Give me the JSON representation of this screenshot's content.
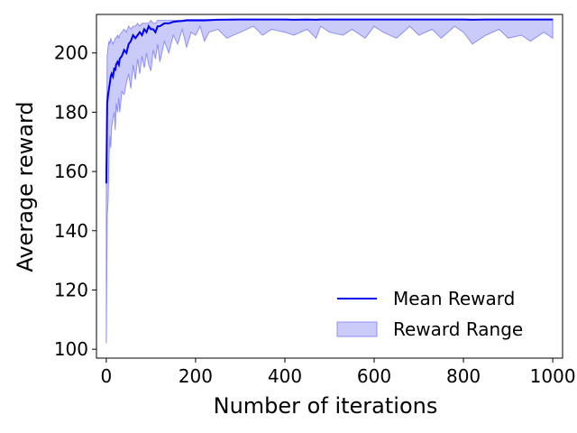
{
  "chart_data": {
    "type": "line",
    "title": "",
    "xlabel": "Number of iterations",
    "ylabel": "Average reward",
    "xlim": [
      -22,
      1022
    ],
    "ylim": [
      97,
      213
    ],
    "xticks": [
      0,
      200,
      400,
      600,
      800,
      1000
    ],
    "yticks": [
      100,
      120,
      140,
      160,
      180,
      200
    ],
    "grid": false,
    "legend_position": "lower-right",
    "colors": {
      "mean_line": "#0000ee",
      "range_fill": "#cbcbf9",
      "range_edge": "#8f8ff5"
    },
    "series": [
      {
        "name": "Mean Reward",
        "kind": "line",
        "x": [
          0,
          2,
          4,
          6,
          8,
          10,
          12,
          15,
          18,
          20,
          22,
          25,
          28,
          30,
          35,
          40,
          45,
          50,
          55,
          60,
          65,
          70,
          75,
          80,
          85,
          90,
          95,
          100,
          105,
          110,
          115,
          120,
          130,
          140,
          150,
          160,
          170,
          180,
          200,
          220,
          250,
          300,
          350,
          400,
          420,
          450,
          470,
          480,
          500,
          550,
          600,
          650,
          700,
          750,
          800,
          820,
          850,
          900,
          950,
          1000
        ],
        "y": [
          156,
          183,
          186,
          188,
          190,
          192,
          193,
          192,
          195,
          194,
          196,
          197,
          196,
          198,
          199,
          201,
          200,
          203,
          204,
          206,
          205,
          206,
          207,
          206,
          208,
          207,
          209,
          208,
          208,
          207,
          209,
          209,
          210,
          210,
          210.5,
          210.7,
          210.8,
          211,
          211,
          211,
          211.2,
          211.3,
          211.3,
          211.3,
          211.2,
          211.3,
          211.2,
          211.3,
          211.3,
          211.3,
          211.3,
          211.3,
          211.3,
          211.3,
          211.3,
          211.2,
          211.3,
          211.3,
          211.3,
          211.3
        ]
      },
      {
        "name": "Reward Range",
        "kind": "band",
        "x": [
          0,
          2,
          4,
          6,
          8,
          10,
          12,
          15,
          18,
          20,
          22,
          25,
          28,
          30,
          35,
          40,
          45,
          50,
          55,
          60,
          65,
          70,
          75,
          80,
          85,
          90,
          95,
          100,
          105,
          110,
          115,
          120,
          130,
          140,
          150,
          160,
          170,
          180,
          190,
          200,
          210,
          220,
          230,
          250,
          270,
          300,
          330,
          350,
          370,
          400,
          420,
          450,
          470,
          480,
          500,
          530,
          550,
          580,
          600,
          620,
          650,
          680,
          700,
          730,
          750,
          780,
          800,
          820,
          850,
          880,
          900,
          930,
          950,
          980,
          1000
        ],
        "upper": [
          160,
          199,
          202,
          204,
          203,
          205,
          204,
          203,
          204,
          205,
          205,
          206,
          205,
          206,
          207,
          208,
          207,
          209,
          208,
          209,
          209,
          210,
          209,
          210,
          210,
          210,
          210,
          211,
          210,
          210,
          211,
          211,
          211,
          211,
          211,
          211,
          211,
          211.3,
          211.3,
          211.3,
          211.3,
          211.3,
          211.3,
          211.3,
          211.3,
          211.3,
          211.3,
          211.3,
          211.3,
          211.3,
          211.3,
          211.3,
          211.3,
          211.3,
          211.3,
          211.3,
          211.3,
          211.3,
          211.3,
          211.3,
          211.3,
          211.3,
          211.3,
          211.3,
          211.3,
          211.3,
          211.3,
          211.3,
          211.3,
          211.3,
          211.3,
          211.3,
          211.3,
          211.3,
          211.3
        ],
        "lower": [
          102,
          145,
          150,
          165,
          172,
          168,
          175,
          178,
          180,
          174,
          183,
          180,
          185,
          180,
          187,
          186,
          190,
          193,
          188,
          196,
          191,
          198,
          193,
          199,
          195,
          200,
          196,
          194,
          201,
          198,
          203,
          197,
          204,
          200,
          206,
          203,
          208,
          202,
          207,
          206,
          209,
          204,
          207,
          208,
          205,
          207,
          209,
          206,
          208,
          207,
          206,
          208,
          205,
          209,
          207,
          206,
          208,
          205,
          209,
          207,
          205,
          209,
          206,
          208,
          205,
          209,
          207,
          203,
          206,
          208,
          205,
          206,
          204,
          207,
          205
        ]
      }
    ]
  }
}
